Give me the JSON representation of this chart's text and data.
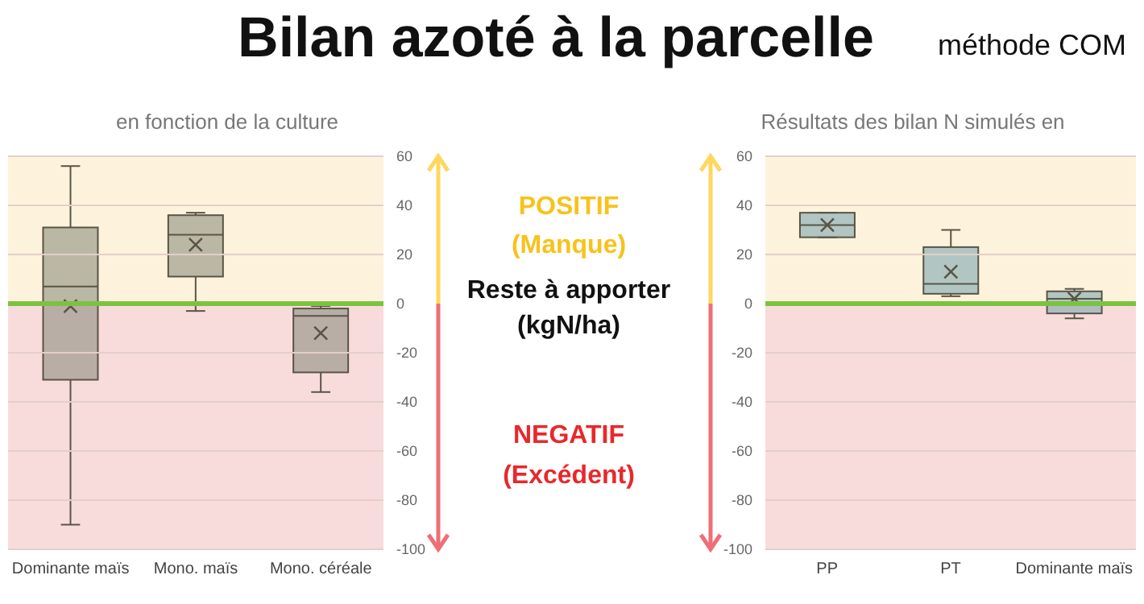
{
  "chart_data": [
    {
      "type": "other",
      "title": "Bilan azoté à la parcelle",
      "subtitle": "méthode COM",
      "annotations": [
        "POSITIF",
        "(Manque)",
        "Reste à apporter (kgN/ha)",
        "NEGATIF",
        "(Excédent)"
      ]
    },
    {
      "type": "box",
      "title": "en fonction de la culture",
      "categories": [
        "Dominante maïs",
        "Mono. maïs",
        "Mono. céréale"
      ],
      "color": "#8f8f80",
      "boxes": [
        {
          "low": -90,
          "q1": -31,
          "median": 7,
          "q3": 31,
          "high": 56,
          "mean": -1
        },
        {
          "low": -3,
          "q1": 11,
          "median": 28,
          "q3": 36,
          "high": 37,
          "mean": 24
        },
        {
          "low": -36,
          "q1": -28,
          "median": -5,
          "q3": -2,
          "high": -1,
          "mean": -12
        }
      ],
      "ylim": [
        -100,
        60
      ],
      "yticks": [
        -100,
        -80,
        -60,
        -40,
        -20,
        0,
        20,
        40,
        60
      ],
      "grid": "y",
      "bands": [
        {
          "axis": "y",
          "from": 0,
          "to": 60,
          "color": "#fdf3dc"
        },
        {
          "axis": "y",
          "from": -100,
          "to": 0,
          "color": "#f8dcdc"
        }
      ],
      "ref_lines": [
        {
          "axis": "y",
          "value": 0,
          "color": "#7cc242"
        }
      ]
    },
    {
      "type": "box",
      "title": "Résultats des bilan N simulés en",
      "categories": [
        "PP",
        "PT",
        "Dominante maïs"
      ],
      "color": "#7fa9b0",
      "boxes": [
        {
          "low": 27,
          "q1": 27,
          "median": 32,
          "q3": 37,
          "high": 37,
          "mean": 32
        },
        {
          "low": 3,
          "q1": 4,
          "median": 8,
          "q3": 23,
          "high": 30,
          "mean": 13
        },
        {
          "low": -6,
          "q1": -4,
          "median": 2,
          "q3": 5,
          "high": 6,
          "mean": 2
        }
      ],
      "ylim": [
        -100,
        60
      ],
      "yticks": [
        -100,
        -80,
        -60,
        -40,
        -20,
        0,
        20,
        40,
        60
      ],
      "grid": "y",
      "bands": [
        {
          "axis": "y",
          "from": 0,
          "to": 60,
          "color": "#fdf3dc"
        },
        {
          "axis": "y",
          "from": -100,
          "to": 0,
          "color": "#f8dcdc"
        }
      ],
      "ref_lines": [
        {
          "axis": "y",
          "value": 0,
          "color": "#7cc242"
        }
      ]
    }
  ]
}
